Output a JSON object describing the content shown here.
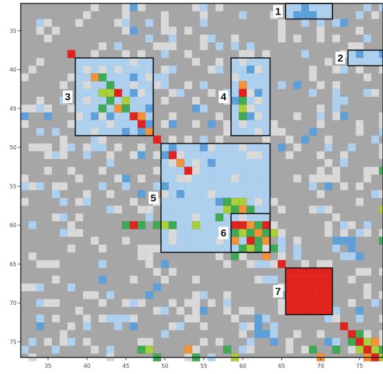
{
  "chart_data": {
    "type": "heatmap",
    "title": "",
    "xlabel": "",
    "ylabel": "",
    "x_ticks": [
      35,
      40,
      45,
      50,
      55,
      60,
      65,
      70,
      75
    ],
    "y_ticks": [
      35,
      40,
      45,
      50,
      55,
      60,
      65,
      70,
      75
    ],
    "xlim": [
      32,
      78.5
    ],
    "ylim": [
      32,
      77.5
    ],
    "grid": false,
    "colors": {
      "background": "#a6a6a6",
      "pale": "#d9d9d9",
      "light_blue": "#aed0ef",
      "blue": "#5d9fd8",
      "green": "#3eaa53",
      "yellow_green": "#a9cf3c",
      "orange": "#f39237",
      "red": "#e2231d",
      "box_stroke": "#111111"
    },
    "blocks": [
      {
        "label": "1",
        "x": [
          66,
          72
        ],
        "y": [
          32,
          34
        ]
      },
      {
        "label": "2",
        "x": [
          74,
          78.5
        ],
        "y": [
          38,
          40
        ]
      },
      {
        "label": "3",
        "x": [
          39,
          49
        ],
        "y": [
          39,
          49
        ]
      },
      {
        "label": "4",
        "x": [
          59,
          64
        ],
        "y": [
          39,
          49
        ]
      },
      {
        "label": "5",
        "x": [
          50,
          64
        ],
        "y": [
          50,
          64
        ]
      },
      {
        "label": "6",
        "x": [
          59,
          64
        ],
        "y": [
          59,
          64
        ]
      },
      {
        "label": "7",
        "x": [
          66,
          72
        ],
        "y": [
          66,
          72
        ]
      }
    ],
    "strong_cells": [
      {
        "x": 38,
        "y": 38,
        "color": "red"
      },
      {
        "x": 41,
        "y": 41,
        "color": "orange"
      },
      {
        "x": 42,
        "y": 41,
        "color": "green"
      },
      {
        "x": 43,
        "y": 42,
        "color": "green"
      },
      {
        "x": 42,
        "y": 43,
        "color": "yellow_green"
      },
      {
        "x": 43,
        "y": 43,
        "color": "yellow_green"
      },
      {
        "x": 44,
        "y": 43,
        "color": "red"
      },
      {
        "x": 43,
        "y": 44,
        "color": "green"
      },
      {
        "x": 45,
        "y": 44,
        "color": "yellow_green"
      },
      {
        "x": 42,
        "y": 45,
        "color": "green"
      },
      {
        "x": 44,
        "y": 45,
        "color": "orange"
      },
      {
        "x": 45,
        "y": 45,
        "color": "green"
      },
      {
        "x": 46,
        "y": 46,
        "color": "red"
      },
      {
        "x": 47,
        "y": 46,
        "color": "orange"
      },
      {
        "x": 47,
        "y": 47,
        "color": "red"
      },
      {
        "x": 48,
        "y": 48,
        "color": "orange"
      },
      {
        "x": 49,
        "y": 49,
        "color": "red"
      },
      {
        "x": 60,
        "y": 42,
        "color": "orange"
      },
      {
        "x": 60,
        "y": 43,
        "color": "red"
      },
      {
        "x": 60,
        "y": 44,
        "color": "green"
      },
      {
        "x": 60,
        "y": 45,
        "color": "yellow_green"
      },
      {
        "x": 60,
        "y": 46,
        "color": "green"
      },
      {
        "x": 51,
        "y": 51,
        "color": "red"
      },
      {
        "x": 52,
        "y": 52,
        "color": "orange"
      },
      {
        "x": 53,
        "y": 53,
        "color": "red"
      },
      {
        "x": 58,
        "y": 57,
        "color": "green"
      },
      {
        "x": 59,
        "y": 57,
        "color": "yellow_green"
      },
      {
        "x": 60,
        "y": 57,
        "color": "yellow_green"
      },
      {
        "x": 58,
        "y": 58,
        "color": "yellow_green"
      },
      {
        "x": 59,
        "y": 58,
        "color": "green"
      },
      {
        "x": 60,
        "y": 58,
        "color": "orange"
      },
      {
        "x": 61,
        "y": 58,
        "color": "green"
      },
      {
        "x": 57,
        "y": 59,
        "color": "green"
      },
      {
        "x": 54,
        "y": 60,
        "color": "yellow_green"
      },
      {
        "x": 45,
        "y": 60,
        "color": "green"
      },
      {
        "x": 46,
        "y": 60,
        "color": "red"
      },
      {
        "x": 47,
        "y": 60,
        "color": "green"
      },
      {
        "x": 49,
        "y": 60,
        "color": "green"
      },
      {
        "x": 50,
        "y": 60,
        "color": "yellow_green"
      },
      {
        "x": 51,
        "y": 60,
        "color": "green"
      },
      {
        "x": 59,
        "y": 60,
        "color": "red"
      },
      {
        "x": 60,
        "y": 60,
        "color": "red"
      },
      {
        "x": 61,
        "y": 60,
        "color": "orange"
      },
      {
        "x": 62,
        "y": 60,
        "color": "green"
      },
      {
        "x": 63,
        "y": 60,
        "color": "red"
      },
      {
        "x": 59,
        "y": 61,
        "color": "green"
      },
      {
        "x": 60,
        "y": 61,
        "color": "yellow_green"
      },
      {
        "x": 61,
        "y": 61,
        "color": "green"
      },
      {
        "x": 62,
        "y": 61,
        "color": "orange"
      },
      {
        "x": 63,
        "y": 61,
        "color": "green"
      },
      {
        "x": 64,
        "y": 61,
        "color": "yellow_green"
      },
      {
        "x": 59,
        "y": 62,
        "color": "orange"
      },
      {
        "x": 61,
        "y": 62,
        "color": "red"
      },
      {
        "x": 62,
        "y": 62,
        "color": "green"
      },
      {
        "x": 63,
        "y": 62,
        "color": "orange"
      },
      {
        "x": 60,
        "y": 63,
        "color": "green"
      },
      {
        "x": 61,
        "y": 63,
        "color": "yellow_green"
      },
      {
        "x": 62,
        "y": 63,
        "color": "green"
      },
      {
        "x": 64,
        "y": 63,
        "color": "green"
      },
      {
        "x": 59,
        "y": 64,
        "color": "green"
      },
      {
        "x": 63,
        "y": 64,
        "color": "orange"
      },
      {
        "x": 65,
        "y": 65,
        "color": "red"
      },
      {
        "x": 73,
        "y": 73,
        "color": "red"
      },
      {
        "x": 74,
        "y": 74,
        "color": "red"
      },
      {
        "x": 75,
        "y": 74,
        "color": "green"
      },
      {
        "x": 74,
        "y": 75,
        "color": "green"
      },
      {
        "x": 75,
        "y": 75,
        "color": "red"
      },
      {
        "x": 76,
        "y": 75,
        "color": "yellow_green"
      },
      {
        "x": 77,
        "y": 75,
        "color": "orange"
      },
      {
        "x": 75,
        "y": 76,
        "color": "yellow_green"
      },
      {
        "x": 76,
        "y": 76,
        "color": "red"
      },
      {
        "x": 77,
        "y": 76,
        "color": "yellow_green"
      },
      {
        "x": 76,
        "y": 77,
        "color": "orange"
      },
      {
        "x": 77,
        "y": 77,
        "color": "red"
      },
      {
        "x": 78,
        "y": 76,
        "color": "green"
      },
      {
        "x": 78,
        "y": 77,
        "color": "yellow_green"
      },
      {
        "x": 47,
        "y": 76,
        "color": "green"
      },
      {
        "x": 48,
        "y": 76,
        "color": "yellow_green"
      },
      {
        "x": 49,
        "y": 77,
        "color": "green"
      },
      {
        "x": 53,
        "y": 76,
        "color": "orange"
      },
      {
        "x": 54,
        "y": 77,
        "color": "green"
      },
      {
        "x": 58,
        "y": 76,
        "color": "green"
      },
      {
        "x": 59,
        "y": 77,
        "color": "yellow_green"
      },
      {
        "x": 69,
        "y": 76,
        "color": "green"
      },
      {
        "x": 70,
        "y": 77,
        "color": "orange"
      },
      {
        "x": 72,
        "y": 76,
        "color": "green"
      },
      {
        "x": 78,
        "y": 53,
        "color": "green"
      },
      {
        "x": 78,
        "y": 58,
        "color": "yellow_green"
      },
      {
        "x": 78,
        "y": 62,
        "color": "green"
      }
    ]
  }
}
